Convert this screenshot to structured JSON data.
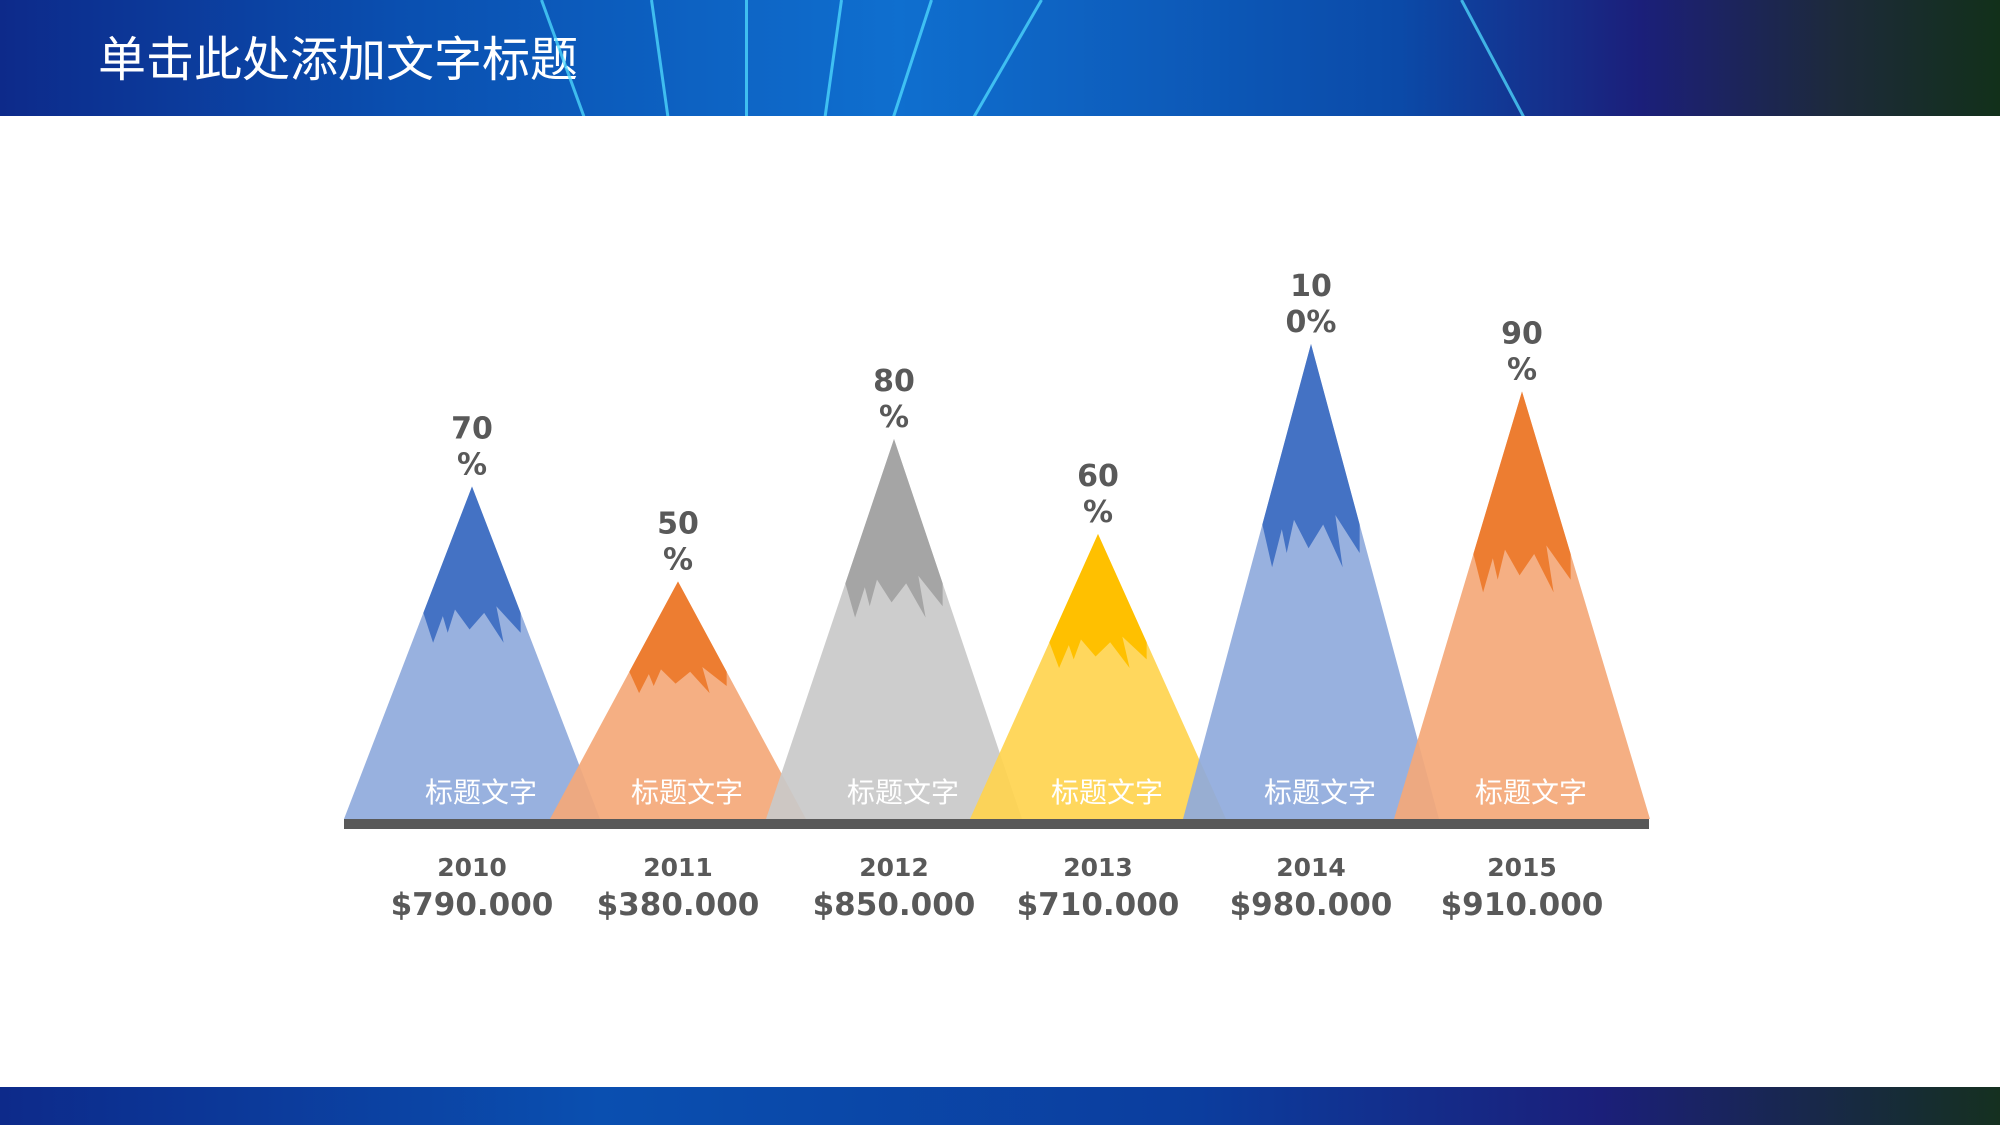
{
  "header": {
    "title": "单击此处添加文字标题"
  },
  "chart_data": {
    "type": "bar",
    "style": "mountain-triangles",
    "categories": [
      "2010",
      "2011",
      "2012",
      "2013",
      "2014",
      "2015"
    ],
    "values_percent": [
      70,
      50,
      80,
      60,
      100,
      90
    ],
    "percent_labels": [
      [
        "70",
        "%"
      ],
      [
        "50",
        "%"
      ],
      [
        "80",
        "%"
      ],
      [
        "60",
        "%"
      ],
      [
        "10",
        "0%"
      ],
      [
        "90",
        "%"
      ]
    ],
    "amounts": [
      "$790.000",
      "$380.000",
      "$850.000",
      "$710.000",
      "$980.000",
      "$910.000"
    ],
    "inner_labels": [
      "标题文字",
      "标题文字",
      "标题文字",
      "标题文字",
      "标题文字",
      "标题文字"
    ],
    "colors": [
      {
        "cap": "#4472C4",
        "body": "#8FAADC"
      },
      {
        "cap": "#ED7D31",
        "body": "#F4A878"
      },
      {
        "cap": "#A5A5A5",
        "body": "#C9C9C9"
      },
      {
        "cap": "#FFC000",
        "body": "#FFD44F"
      },
      {
        "cap": "#4472C4",
        "body": "#8FAADC"
      },
      {
        "cap": "#ED7D31",
        "body": "#F4A878"
      }
    ],
    "baseline_color": "#595959",
    "ylim": [
      0,
      100
    ]
  }
}
